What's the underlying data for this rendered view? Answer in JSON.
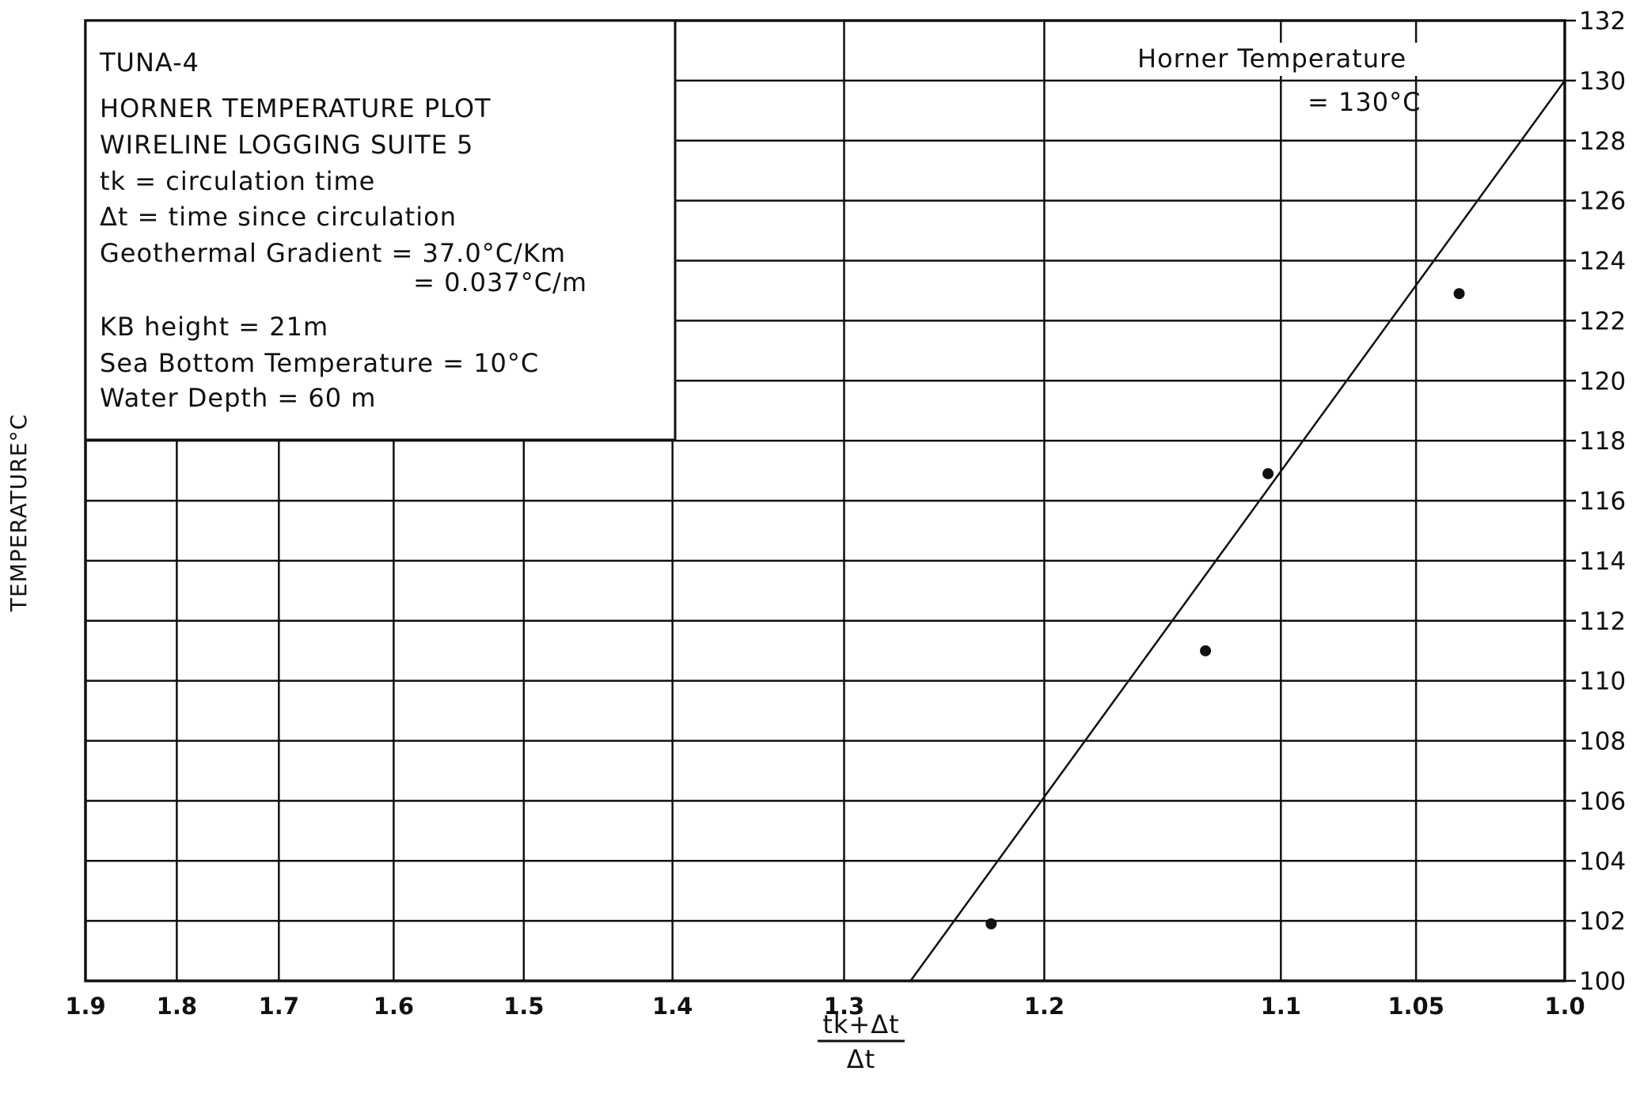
{
  "chart_data": {
    "type": "scatter",
    "title": "HORNER TEMPERATURE PLOT",
    "ylabel": "TEMPERATURE°C",
    "xlabel_numerator": "tk+Δt",
    "xlabel_denominator": "Δt",
    "x_scale": "reciprocal",
    "x_reversed": true,
    "xlim": [
      1.9,
      1.0
    ],
    "ylim": [
      100,
      132
    ],
    "grid": true,
    "x_ticks": [
      1.9,
      1.8,
      1.7,
      1.6,
      1.5,
      1.4,
      1.3,
      1.2,
      1.1,
      1.05,
      1.0
    ],
    "x_tick_labels": [
      "1.9",
      "1.8",
      "1.7",
      "1.6",
      "1.5",
      "1.4",
      "1.3",
      "1.2",
      "1.1",
      "1.05",
      "1.0"
    ],
    "y_ticks": [
      100,
      102,
      104,
      106,
      108,
      110,
      112,
      114,
      116,
      118,
      120,
      122,
      124,
      126,
      128,
      130,
      132
    ],
    "y_tick_labels": [
      "100",
      "102",
      "104",
      "106",
      "108",
      "110",
      "112",
      "114",
      "116",
      "118",
      "120",
      "122",
      "124",
      "126",
      "128",
      "130",
      "132"
    ],
    "points": [
      {
        "x": 1.225,
        "y": 101.9
      },
      {
        "x": 1.13,
        "y": 111.0
      },
      {
        "x": 1.105,
        "y": 116.9
      },
      {
        "x": 1.035,
        "y": 122.9
      }
    ],
    "fit_line": [
      {
        "x": 1.265,
        "y": 100.0
      },
      {
        "x": 1.0,
        "y": 130.0
      }
    ]
  },
  "info_box": {
    "well": "TUNA-4",
    "title": "HORNER TEMPERATURE PLOT",
    "suite": "WIRELINE LOGGING SUITE 5",
    "tk_def": "tk = circulation time",
    "dt_def": "Δt = time since circulation",
    "gradient_1": "Geothermal Gradient = 37.0°C/Km",
    "gradient_2": "= 0.037°C/m",
    "kb_height": "KB height = 21m",
    "sea_bottom": "Sea Bottom Temperature = 10°C",
    "water_depth": "Water Depth =  60 m"
  },
  "annotation": {
    "line1": "Horner Temperature",
    "line2": "= 130°C"
  }
}
